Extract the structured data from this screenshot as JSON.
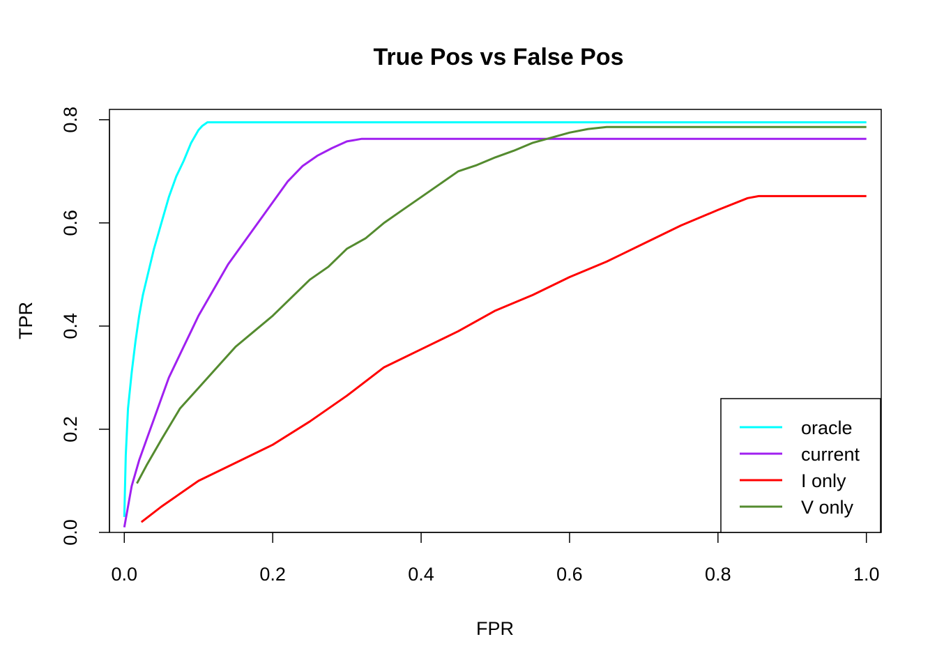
{
  "chart_data": {
    "type": "line",
    "title": "True Pos vs False Pos",
    "xlabel": "FPR",
    "ylabel": "TPR",
    "xlim": [
      -0.02,
      1.02
    ],
    "ylim": [
      0.0,
      0.82
    ],
    "xticks": [
      0.0,
      0.2,
      0.4,
      0.6,
      0.8,
      1.0
    ],
    "xtick_labels": [
      "0.0",
      "0.2",
      "0.4",
      "0.6",
      "0.8",
      "1.0"
    ],
    "yticks": [
      0.0,
      0.2,
      0.4,
      0.6,
      0.8
    ],
    "ytick_labels": [
      "0.0",
      "0.2",
      "0.4",
      "0.6",
      "0.8"
    ],
    "grid": false,
    "legend_position": "bottom-right",
    "series": [
      {
        "name": "oracle",
        "color": "#00ffff",
        "x": [
          0.0,
          0.002,
          0.005,
          0.01,
          0.015,
          0.02,
          0.025,
          0.03,
          0.04,
          0.05,
          0.06,
          0.07,
          0.08,
          0.09,
          0.1,
          0.105,
          0.112,
          1.0
        ],
        "y": [
          0.03,
          0.15,
          0.24,
          0.31,
          0.37,
          0.42,
          0.46,
          0.49,
          0.55,
          0.6,
          0.65,
          0.69,
          0.72,
          0.755,
          0.78,
          0.788,
          0.795,
          0.795
        ]
      },
      {
        "name": "current",
        "color": "#a020f0",
        "x": [
          0.0,
          0.01,
          0.02,
          0.03,
          0.04,
          0.05,
          0.06,
          0.07,
          0.08,
          0.09,
          0.1,
          0.12,
          0.14,
          0.16,
          0.18,
          0.2,
          0.22,
          0.24,
          0.26,
          0.28,
          0.3,
          0.32,
          1.0
        ],
        "y": [
          0.01,
          0.09,
          0.14,
          0.18,
          0.22,
          0.26,
          0.3,
          0.33,
          0.36,
          0.39,
          0.42,
          0.47,
          0.52,
          0.56,
          0.6,
          0.64,
          0.68,
          0.71,
          0.73,
          0.745,
          0.758,
          0.763,
          0.763
        ]
      },
      {
        "name": "I only",
        "color": "#ff0000",
        "x": [
          0.023,
          0.05,
          0.1,
          0.15,
          0.2,
          0.25,
          0.3,
          0.35,
          0.4,
          0.45,
          0.5,
          0.55,
          0.6,
          0.65,
          0.7,
          0.75,
          0.8,
          0.84,
          0.855,
          1.0
        ],
        "y": [
          0.02,
          0.05,
          0.1,
          0.135,
          0.17,
          0.215,
          0.265,
          0.32,
          0.355,
          0.39,
          0.43,
          0.46,
          0.495,
          0.525,
          0.56,
          0.595,
          0.625,
          0.648,
          0.652,
          0.652
        ]
      },
      {
        "name": "V only",
        "color": "#548b2f",
        "x": [
          0.017,
          0.03,
          0.05,
          0.075,
          0.1,
          0.125,
          0.15,
          0.175,
          0.2,
          0.225,
          0.25,
          0.275,
          0.3,
          0.325,
          0.35,
          0.375,
          0.4,
          0.425,
          0.45,
          0.475,
          0.5,
          0.525,
          0.55,
          0.575,
          0.6,
          0.625,
          0.65,
          0.66,
          1.0
        ],
        "y": [
          0.095,
          0.13,
          0.18,
          0.24,
          0.28,
          0.32,
          0.36,
          0.39,
          0.42,
          0.455,
          0.49,
          0.515,
          0.55,
          0.57,
          0.6,
          0.625,
          0.65,
          0.675,
          0.7,
          0.712,
          0.727,
          0.74,
          0.755,
          0.765,
          0.775,
          0.782,
          0.786,
          0.786,
          0.786
        ]
      }
    ]
  }
}
